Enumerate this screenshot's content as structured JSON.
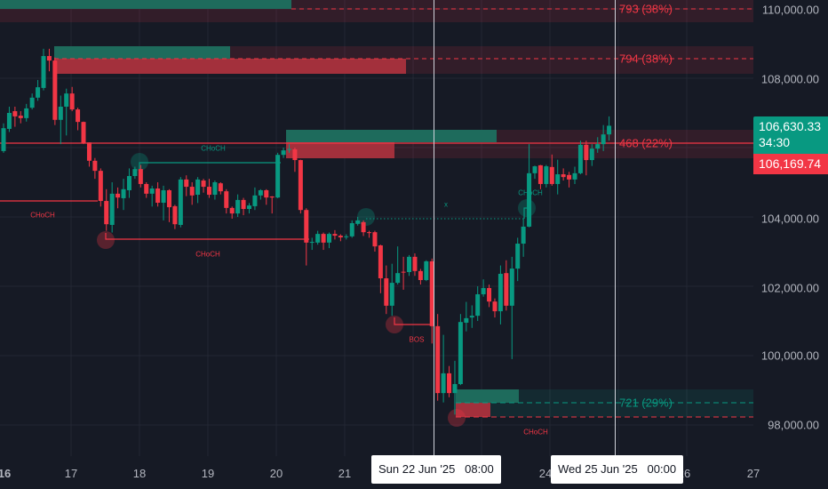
{
  "chart_data": {
    "type": "candlestick",
    "colors": {
      "up": "#089981",
      "down": "#f23645",
      "background": "#161a25",
      "grid": "#232734"
    },
    "ylim": [
      97500,
      110250
    ],
    "y_ticks": [
      "110,000.00",
      "108,000.00",
      "104,000.00",
      "102,000.00",
      "100,000.00",
      "98,000.00"
    ],
    "x_ticks": [
      "16",
      "17",
      "18",
      "19",
      "20",
      "21",
      "24",
      "26",
      "27"
    ],
    "candles": [
      [
        105900,
        106700,
        105850,
        106560
      ],
      [
        106540,
        107180,
        106450,
        107000
      ],
      [
        107050,
        107180,
        106600,
        106900
      ],
      [
        106920,
        107050,
        106700,
        106850
      ],
      [
        106850,
        107260,
        106750,
        107130
      ],
      [
        107150,
        107560,
        107100,
        107440
      ],
      [
        107440,
        107950,
        107350,
        107740
      ],
      [
        107720,
        108850,
        107650,
        108640
      ],
      [
        108640,
        108850,
        108200,
        108510
      ],
      [
        108510,
        108600,
        106650,
        106800
      ],
      [
        106800,
        107500,
        106100,
        107180
      ],
      [
        107180,
        107700,
        106350,
        107560
      ],
      [
        107560,
        107750,
        107050,
        107100
      ],
      [
        107100,
        107150,
        106500,
        106740
      ],
      [
        106740,
        106750,
        106100,
        106130
      ],
      [
        106150,
        106150,
        105450,
        105620
      ],
      [
        105620,
        105700,
        105100,
        105330
      ],
      [
        105330,
        105400,
        104300,
        104460
      ],
      [
        104460,
        104800,
        103600,
        103790
      ],
      [
        103770,
        105000,
        103550,
        104670
      ],
      [
        104670,
        104850,
        104250,
        104560
      ],
      [
        104540,
        105100,
        104200,
        104800
      ],
      [
        104770,
        105400,
        104550,
        105180
      ],
      [
        105180,
        105450,
        105100,
        105380
      ],
      [
        105380,
        105500,
        104850,
        104950
      ],
      [
        104950,
        105000,
        104550,
        104670
      ],
      [
        104670,
        104900,
        104300,
        104820
      ],
      [
        104820,
        105000,
        104300,
        104410
      ],
      [
        104410,
        104900,
        103900,
        104770
      ],
      [
        104770,
        104800,
        103850,
        104280
      ],
      [
        104310,
        104350,
        103650,
        103790
      ],
      [
        103770,
        105150,
        103700,
        105080
      ],
      [
        105080,
        105200,
        104600,
        104870
      ],
      [
        104870,
        105000,
        104350,
        104620
      ],
      [
        104640,
        105150,
        104400,
        105080
      ],
      [
        105050,
        105100,
        104700,
        104870
      ],
      [
        104870,
        105100,
        104550,
        104640
      ],
      [
        104640,
        105050,
        104500,
        105000
      ],
      [
        104970,
        105000,
        104650,
        104740
      ],
      [
        104740,
        104800,
        104100,
        104260
      ],
      [
        104260,
        104300,
        103950,
        104100
      ],
      [
        104100,
        104650,
        104000,
        104490
      ],
      [
        104490,
        104550,
        104050,
        104230
      ],
      [
        104230,
        104400,
        104100,
        104330
      ],
      [
        104310,
        104850,
        104200,
        104620
      ],
      [
        104620,
        104800,
        104500,
        104770
      ],
      [
        104770,
        104800,
        104350,
        104560
      ],
      [
        104590,
        104600,
        104100,
        104560
      ],
      [
        104560,
        105850,
        104540,
        105790
      ],
      [
        105790,
        106000,
        105700,
        105920
      ],
      [
        105950,
        106100,
        105850,
        105960
      ],
      [
        105950,
        106000,
        105300,
        105640
      ],
      [
        105640,
        105650,
        104100,
        104200
      ],
      [
        104200,
        104250,
        102600,
        103260
      ],
      [
        103260,
        103400,
        103050,
        103280
      ],
      [
        103260,
        103600,
        103200,
        103510
      ],
      [
        103510,
        103550,
        103050,
        103260
      ],
      [
        103260,
        103550,
        103100,
        103510
      ],
      [
        103510,
        103620,
        103350,
        103460
      ],
      [
        103460,
        103500,
        103300,
        103410
      ],
      [
        103440,
        103500,
        103350,
        103440
      ],
      [
        103440,
        103900,
        103400,
        103820
      ],
      [
        103800,
        104000,
        103750,
        103900
      ],
      [
        103850,
        103900,
        103450,
        103560
      ],
      [
        103560,
        103600,
        103400,
        103540
      ],
      [
        103560,
        103600,
        103000,
        103150
      ],
      [
        103180,
        103200,
        101800,
        102230
      ],
      [
        102230,
        102600,
        101200,
        101440
      ],
      [
        101440,
        102650,
        101150,
        102100
      ],
      [
        102100,
        103150,
        102050,
        102380
      ],
      [
        102420,
        102850,
        101900,
        102400
      ],
      [
        102410,
        102900,
        102300,
        102850
      ],
      [
        102850,
        102950,
        102300,
        102440
      ],
      [
        102440,
        102500,
        102050,
        102180
      ],
      [
        102180,
        102750,
        102150,
        102720
      ],
      [
        102720,
        102800,
        100350,
        100850
      ],
      [
        100850,
        101200,
        98700,
        98920
      ],
      [
        98920,
        100600,
        98650,
        99490
      ],
      [
        99490,
        99700,
        98800,
        98920
      ],
      [
        98920,
        99850,
        98300,
        99180
      ],
      [
        99180,
        101200,
        99150,
        100970
      ],
      [
        100950,
        101550,
        100700,
        101080
      ],
      [
        101100,
        101450,
        100800,
        101150
      ],
      [
        101150,
        102000,
        101000,
        101770
      ],
      [
        101770,
        102200,
        101700,
        101950
      ],
      [
        101950,
        102050,
        101400,
        101560
      ],
      [
        101560,
        101650,
        101100,
        101280
      ],
      [
        101280,
        102600,
        100900,
        102360
      ],
      [
        102380,
        102750,
        101300,
        101440
      ],
      [
        101440,
        102850,
        99900,
        102510
      ],
      [
        102510,
        103400,
        102150,
        103230
      ],
      [
        103230,
        103950,
        102850,
        103720
      ],
      [
        103720,
        106100,
        103700,
        105260
      ],
      [
        105260,
        105480,
        105100,
        105460
      ],
      [
        105490,
        105500,
        104800,
        104950
      ],
      [
        104950,
        105500,
        104850,
        105460
      ],
      [
        105440,
        105800,
        104900,
        104950
      ],
      [
        104950,
        105650,
        104650,
        105230
      ],
      [
        105230,
        105400,
        105050,
        105150
      ],
      [
        105210,
        105300,
        104850,
        105080
      ],
      [
        105080,
        105450,
        104950,
        105260
      ],
      [
        105260,
        106200,
        105230,
        106080
      ],
      [
        106080,
        106200,
        105200,
        105640
      ],
      [
        105640,
        106100,
        105470,
        105970
      ],
      [
        105970,
        106300,
        105850,
        106100
      ],
      [
        106100,
        106650,
        105900,
        106380
      ],
      [
        106380,
        106900,
        106200,
        106630
      ]
    ],
    "annotations": {
      "zone_labels": [
        "793 (38%)",
        "794 (38%)",
        "468 (22%)",
        "721 (29%)"
      ],
      "structure_labels": [
        "CHoCH",
        "CHoCH",
        "CHoCH",
        "CHoCH",
        "CHoCH",
        "BOS",
        "x"
      ]
    }
  },
  "price_axis": {
    "last_price": "106,630.33",
    "countdown": "34:30",
    "secondary_price": "106,169.74"
  },
  "crosshair": {
    "time_1": "Sun 22 Jun '25   08:00",
    "time_2": "Wed 25 Jun '25   00:00"
  }
}
